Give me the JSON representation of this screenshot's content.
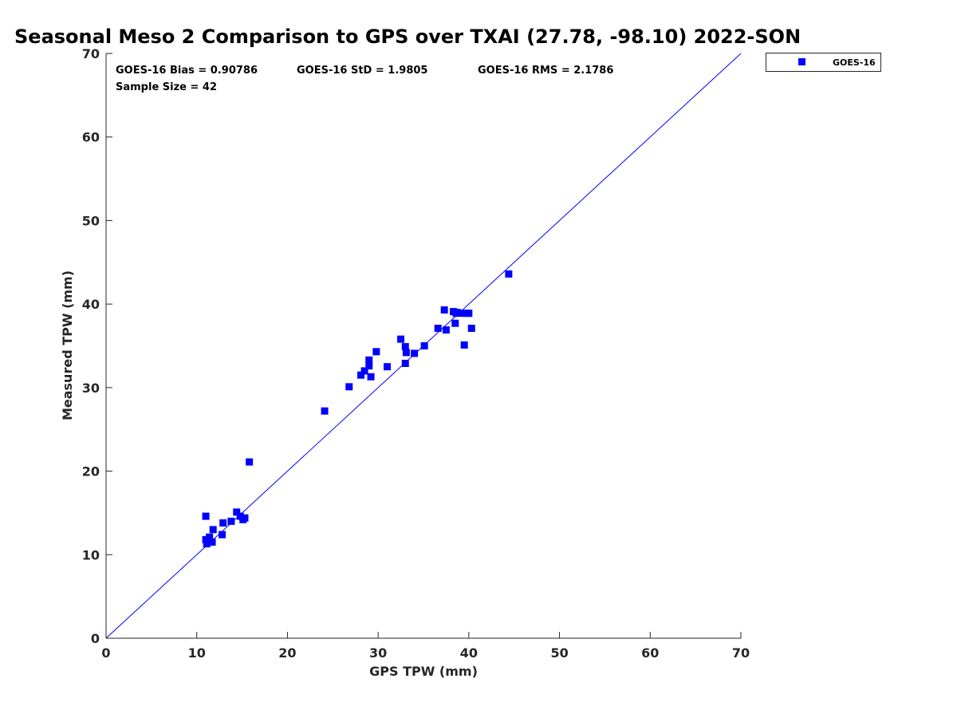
{
  "chart_data": {
    "type": "scatter",
    "title": "Seasonal Meso 2 Comparison to GPS over TXAI (27.78, -98.10) 2022-SON",
    "xlabel": "GPS TPW (mm)",
    "ylabel": "Measured TPW (mm)",
    "xlim": [
      0,
      70
    ],
    "ylim": [
      0,
      70
    ],
    "xticks": [
      "0",
      "10",
      "20",
      "30",
      "40",
      "50",
      "60",
      "70"
    ],
    "yticks": [
      "0",
      "10",
      "20",
      "30",
      "40",
      "50",
      "60",
      "70"
    ],
    "grid": false,
    "legend_position": "outside-top-right",
    "reference_line": {
      "from": [
        0,
        0
      ],
      "to": [
        70,
        70
      ],
      "color": "#0000ff"
    },
    "stats": {
      "bias": "GOES-16 Bias = 0.90786",
      "std": "GOES-16 StD = 1.9805",
      "rms": "GOES-16 RMS = 2.1786",
      "sample_size": "Sample Size = 42"
    },
    "series": [
      {
        "name": "GOES-16",
        "color": "#0000ff",
        "marker": "square",
        "points": [
          [
            11.0,
            11.8
          ],
          [
            11.1,
            11.3
          ],
          [
            11.4,
            12.1
          ],
          [
            11.7,
            11.5
          ],
          [
            11.8,
            13.0
          ],
          [
            11.0,
            14.6
          ],
          [
            12.8,
            12.4
          ],
          [
            12.9,
            13.8
          ],
          [
            13.8,
            14.0
          ],
          [
            14.4,
            15.1
          ],
          [
            14.8,
            14.6
          ],
          [
            15.1,
            14.2
          ],
          [
            15.3,
            14.4
          ],
          [
            15.8,
            21.1
          ],
          [
            24.1,
            27.2
          ],
          [
            26.8,
            30.1
          ],
          [
            28.1,
            31.5
          ],
          [
            28.5,
            32.0
          ],
          [
            29.0,
            32.6
          ],
          [
            29.0,
            33.3
          ],
          [
            29.2,
            31.3
          ],
          [
            29.8,
            34.3
          ],
          [
            31.0,
            32.5
          ],
          [
            32.5,
            35.8
          ],
          [
            33.0,
            34.9
          ],
          [
            33.1,
            34.2
          ],
          [
            33.0,
            32.9
          ],
          [
            34.0,
            34.1
          ],
          [
            35.1,
            35.0
          ],
          [
            36.6,
            37.1
          ],
          [
            37.5,
            36.9
          ],
          [
            37.3,
            39.3
          ],
          [
            38.3,
            39.1
          ],
          [
            38.5,
            37.7
          ],
          [
            38.7,
            39.0
          ],
          [
            39.4,
            38.9
          ],
          [
            39.8,
            38.9
          ],
          [
            40.0,
            38.9
          ],
          [
            39.5,
            35.1
          ],
          [
            40.3,
            37.1
          ],
          [
            38.6,
            38.9
          ],
          [
            44.4,
            43.6
          ]
        ]
      }
    ]
  }
}
